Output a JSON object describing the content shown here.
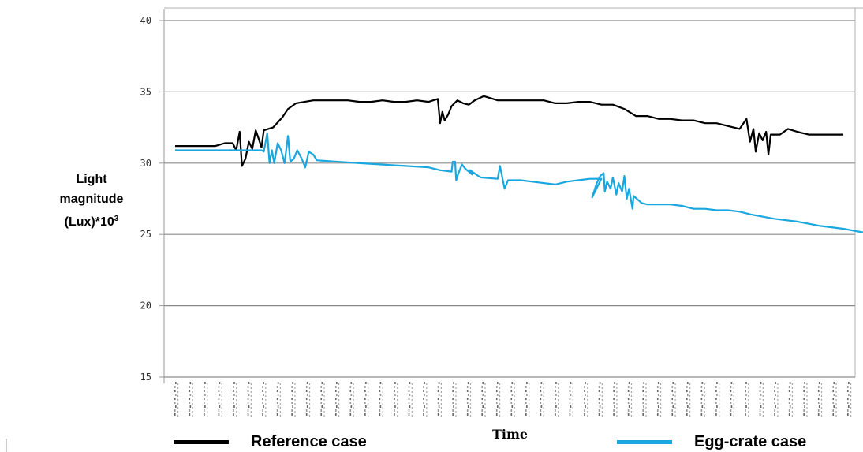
{
  "chart_data": {
    "type": "line",
    "xlabel": "Time",
    "ylabel_lines": [
      "Light",
      "magnitude",
      "(Lux)*10"
    ],
    "ylabel_sup": "3",
    "ylim": [
      15,
      40
    ],
    "yticks": [
      15,
      20,
      25,
      30,
      35,
      40
    ],
    "grid": true,
    "legend_position": "bottom",
    "colors": {
      "reference": "#000000",
      "eggcrate": "#1aa7df",
      "grid": "#8c8c8c"
    },
    "x_tick_count": 47,
    "series": [
      {
        "name": "Reference case",
        "color": "#000000",
        "points": [
          [
            0,
            31.2
          ],
          [
            3.5,
            31.2
          ],
          [
            4.3,
            31.4
          ],
          [
            5,
            31.4
          ],
          [
            5.3,
            30.9
          ],
          [
            5.6,
            32.2
          ],
          [
            5.8,
            29.8
          ],
          [
            6.1,
            30.3
          ],
          [
            6.4,
            31.5
          ],
          [
            6.7,
            31
          ],
          [
            7,
            32.3
          ],
          [
            7.3,
            31.6
          ],
          [
            7.5,
            31.1
          ],
          [
            7.7,
            32.3
          ],
          [
            8.5,
            32.5
          ],
          [
            9.3,
            33.2
          ],
          [
            9.8,
            33.8
          ],
          [
            10.5,
            34.2
          ],
          [
            12,
            34.4
          ],
          [
            15,
            34.4
          ],
          [
            16,
            34.3
          ],
          [
            17,
            34.3
          ],
          [
            18,
            34.4
          ],
          [
            19,
            34.3
          ],
          [
            20,
            34.3
          ],
          [
            21,
            34.4
          ],
          [
            22,
            34.3
          ],
          [
            22.4,
            34.4
          ],
          [
            22.8,
            34.5
          ],
          [
            23,
            32.8
          ],
          [
            23.2,
            33.6
          ],
          [
            23.4,
            33
          ],
          [
            23.7,
            33.4
          ],
          [
            24,
            34
          ],
          [
            24.5,
            34.4
          ],
          [
            25,
            34.2
          ],
          [
            25.5,
            34.1
          ],
          [
            26,
            34.4
          ],
          [
            26.8,
            34.7
          ],
          [
            28,
            34.4
          ],
          [
            32,
            34.4
          ],
          [
            33,
            34.2
          ],
          [
            34,
            34.2
          ],
          [
            35,
            34.3
          ],
          [
            36,
            34.3
          ],
          [
            37,
            34.1
          ],
          [
            38,
            34.1
          ],
          [
            39,
            33.8
          ],
          [
            40,
            33.3
          ],
          [
            41,
            33.3
          ],
          [
            42,
            33.1
          ],
          [
            43,
            33.1
          ],
          [
            44,
            33
          ],
          [
            45,
            33
          ],
          [
            46,
            32.8
          ],
          [
            47,
            32.8
          ],
          [
            48,
            32.6
          ],
          [
            49,
            32.4
          ],
          [
            49.6,
            33.1
          ],
          [
            49.9,
            31.5
          ],
          [
            50.2,
            32.4
          ],
          [
            50.4,
            30.8
          ],
          [
            50.7,
            32.1
          ],
          [
            51,
            31.6
          ],
          [
            51.3,
            32.2
          ],
          [
            51.5,
            30.6
          ],
          [
            51.7,
            32
          ],
          [
            52.5,
            32
          ],
          [
            53.2,
            32.4
          ],
          [
            54,
            32.2
          ],
          [
            55,
            32
          ],
          [
            58,
            32
          ]
        ]
      },
      {
        "name": "Egg-crate case",
        "color": "#1aa7df",
        "points": [
          [
            0,
            30.9
          ],
          [
            5,
            30.9
          ],
          [
            5.6,
            30.9
          ],
          [
            6.2,
            30.9
          ],
          [
            6.7,
            30.9
          ],
          [
            7.1,
            30.9
          ],
          [
            7.5,
            30.9
          ],
          [
            7.7,
            30.8
          ],
          [
            8,
            32.1
          ],
          [
            8.2,
            30
          ],
          [
            8.4,
            30.9
          ],
          [
            8.6,
            30
          ],
          [
            8.9,
            31.4
          ],
          [
            9.2,
            30.9
          ],
          [
            9.5,
            30
          ],
          [
            9.8,
            31.9
          ],
          [
            10,
            30.1
          ],
          [
            10.3,
            30.3
          ],
          [
            10.6,
            30.9
          ],
          [
            11,
            30.3
          ],
          [
            11.3,
            29.7
          ],
          [
            11.6,
            30.8
          ],
          [
            12,
            30.6
          ],
          [
            12.3,
            30.2
          ],
          [
            14,
            30.1
          ],
          [
            18,
            29.9
          ],
          [
            20,
            29.8
          ],
          [
            22,
            29.7
          ],
          [
            23,
            29.5
          ],
          [
            24,
            29.4
          ],
          [
            24.1,
            30.1
          ],
          [
            24.3,
            30.1
          ],
          [
            24.4,
            28.8
          ],
          [
            24.6,
            29.3
          ],
          [
            24.9,
            29.9
          ],
          [
            25.2,
            29.6
          ],
          [
            25.8,
            29.2
          ],
          [
            25.6,
            29.5
          ],
          [
            26.5,
            29
          ],
          [
            28,
            28.9
          ],
          [
            28.2,
            29.8
          ],
          [
            28.6,
            28.2
          ],
          [
            28.9,
            28.8
          ],
          [
            30,
            28.8
          ],
          [
            31,
            28.7
          ],
          [
            33,
            28.5
          ],
          [
            34,
            28.7
          ],
          [
            35,
            28.8
          ],
          [
            36,
            28.9
          ],
          [
            37,
            28.9
          ],
          [
            36.2,
            27.6
          ],
          [
            36.4,
            28.1
          ],
          [
            36.6,
            28.6
          ],
          [
            36.9,
            29.1
          ],
          [
            37.2,
            29.3
          ],
          [
            37.3,
            28
          ],
          [
            37.5,
            28.7
          ],
          [
            37.8,
            28.2
          ],
          [
            38,
            29
          ],
          [
            38.3,
            27.8
          ],
          [
            38.5,
            28.6
          ],
          [
            38.8,
            28
          ],
          [
            39,
            29.1
          ],
          [
            39.2,
            27.5
          ],
          [
            39.4,
            28.2
          ],
          [
            39.7,
            26.8
          ],
          [
            39.8,
            27.7
          ],
          [
            40.5,
            27.2
          ],
          [
            41,
            27.1
          ],
          [
            43,
            27.1
          ],
          [
            44,
            27
          ],
          [
            45,
            26.8
          ],
          [
            46,
            26.8
          ],
          [
            47,
            26.7
          ],
          [
            48,
            26.7
          ],
          [
            49,
            26.6
          ],
          [
            50,
            26.4
          ],
          [
            52,
            26.1
          ],
          [
            54,
            25.9
          ],
          [
            56,
            25.6
          ],
          [
            58,
            25.4
          ],
          [
            60,
            25.1
          ],
          [
            62,
            24.8
          ],
          [
            63,
            24.6
          ],
          [
            64,
            24.5
          ]
        ]
      }
    ]
  },
  "legend": {
    "reference_label": "Reference case",
    "eggcrate_label": "Egg-crate case"
  }
}
